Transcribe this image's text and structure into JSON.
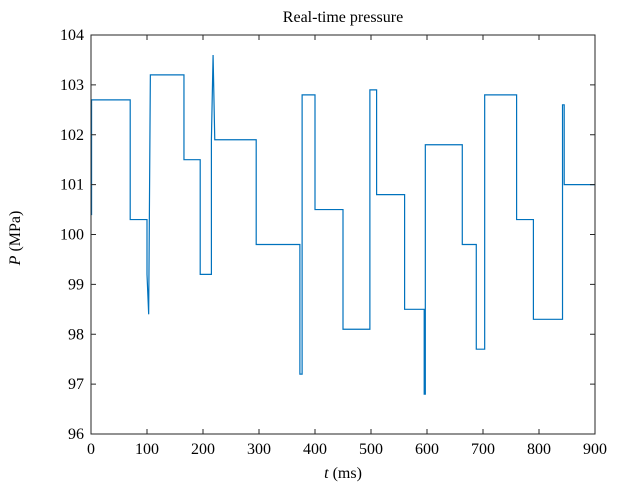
{
  "chart_data": {
    "type": "line",
    "title": "Real-time pressure",
    "xlabel_symbol": "t",
    "xlabel_unit": " (ms)",
    "ylabel_symbol": "P",
    "ylabel_unit": " (MPa)",
    "xlim": [
      0,
      900
    ],
    "ylim": [
      96,
      104
    ],
    "xticks": [
      0,
      100,
      200,
      300,
      400,
      500,
      600,
      700,
      800,
      900
    ],
    "yticks": [
      96,
      97,
      98,
      99,
      100,
      101,
      102,
      103,
      104
    ],
    "grid": false,
    "series": [
      {
        "color": "#0072BD",
        "x": [
          0,
          1,
          1,
          70,
          70,
          100,
          100,
          103,
          103,
          106,
          106,
          166,
          166,
          195,
          195,
          215,
          215,
          218,
          218,
          221,
          221,
          295,
          295,
          373,
          373,
          377,
          377,
          380,
          380,
          400,
          400,
          403,
          403,
          450,
          450,
          455,
          455,
          498,
          498,
          501,
          501,
          510,
          510,
          513,
          513,
          560,
          560,
          565,
          565,
          595,
          595,
          597,
          597,
          603,
          603,
          663,
          663,
          688,
          688,
          697,
          697,
          703,
          703,
          706,
          706,
          760,
          760,
          790,
          790,
          793,
          793,
          842,
          842,
          845,
          845,
          848,
          848,
          900
        ],
        "y": [
          100.4,
          100.4,
          102.7,
          102.7,
          100.3,
          100.3,
          99.2,
          98.4,
          98.4,
          103.2,
          103.2,
          103.2,
          101.5,
          101.5,
          99.2,
          99.2,
          101.9,
          103.6,
          103.6,
          101.9,
          101.9,
          101.9,
          99.8,
          99.8,
          97.2,
          97.2,
          102.8,
          102.8,
          102.8,
          102.8,
          100.5,
          100.5,
          100.5,
          100.5,
          98.1,
          98.1,
          98.1,
          98.1,
          102.9,
          102.9,
          102.9,
          102.9,
          100.8,
          100.8,
          100.8,
          100.8,
          98.5,
          98.5,
          98.5,
          98.5,
          96.8,
          96.8,
          101.8,
          101.8,
          101.8,
          101.8,
          99.8,
          99.8,
          97.7,
          97.7,
          97.7,
          97.7,
          102.8,
          102.8,
          102.8,
          102.8,
          100.3,
          100.3,
          98.3,
          98.3,
          98.3,
          98.3,
          102.6,
          102.6,
          101.0,
          101.0,
          101.0,
          101.0
        ]
      }
    ]
  }
}
